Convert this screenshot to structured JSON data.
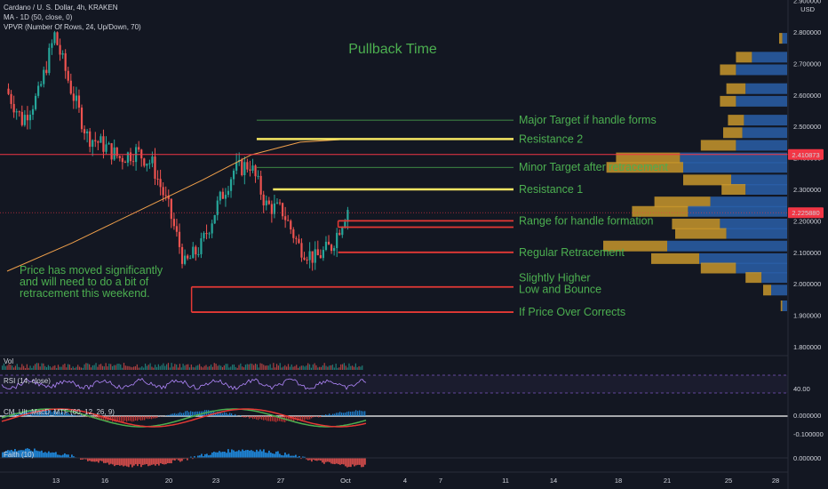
{
  "header": {
    "symbol_line": "Cardano / U. S. Dollar, 4h, KRAKEN",
    "ma_line": "MA - 1D (50, close, 0)",
    "vpvr_line": "VPVR (Number Of Rows, 24, Up/Down, 70)"
  },
  "chart_data": {
    "type": "line",
    "title": "Pullback Time",
    "price_axis": {
      "ticks": [
        "2.900000",
        "2.800000",
        "2.700000",
        "2.600000",
        "2.500000",
        "2.400000",
        "2.300000",
        "2.200000",
        "2.100000",
        "2.000000",
        "1.900000",
        "1.800000"
      ],
      "currency": "USD",
      "ylim": [
        1.8,
        2.9
      ]
    },
    "time_axis": {
      "ticks": [
        "13",
        "16",
        "20",
        "23",
        "27",
        "Oct",
        "4",
        "7",
        "11",
        "14",
        "18",
        "21",
        "25",
        "28"
      ]
    },
    "price_badges": [
      {
        "value": "2.410873",
        "color": "#f23645"
      },
      {
        "value": "2.225880",
        "color": "#f23645"
      }
    ],
    "price_series": {
      "name": "",
      "points": [
        {
          "x": "Sep 10",
          "y": 2.62
        },
        {
          "x": "Sep 11",
          "y": 2.52
        },
        {
          "x": "Sep 12",
          "y": 2.6
        },
        {
          "x": "Sep 13",
          "y": 2.79
        },
        {
          "x": "Sep 14",
          "y": 2.62
        },
        {
          "x": "Sep 15",
          "y": 2.47
        },
        {
          "x": "Sep 16",
          "y": 2.44
        },
        {
          "x": "Sep 17",
          "y": 2.4
        },
        {
          "x": "Sep 18",
          "y": 2.42
        },
        {
          "x": "Sep 19",
          "y": 2.38
        },
        {
          "x": "Sep 20",
          "y": 2.24
        },
        {
          "x": "Sep 21",
          "y": 2.06
        },
        {
          "x": "Sep 22",
          "y": 2.12
        },
        {
          "x": "Sep 23",
          "y": 2.25
        },
        {
          "x": "Sep 24",
          "y": 2.36
        },
        {
          "x": "Sep 25",
          "y": 2.38
        },
        {
          "x": "Sep 26",
          "y": 2.25
        },
        {
          "x": "Sep 27",
          "y": 2.23
        },
        {
          "x": "Sep 28",
          "y": 2.12
        },
        {
          "x": "Sep 29",
          "y": 2.08
        },
        {
          "x": "Sep 30",
          "y": 2.12
        },
        {
          "x": "Oct 1",
          "y": 2.24
        }
      ]
    },
    "ma_series": {
      "name": "",
      "points": [
        {
          "x": "Sep 10",
          "y": 2.04
        },
        {
          "x": "Sep 14",
          "y": 2.13
        },
        {
          "x": "Sep 18",
          "y": 2.23
        },
        {
          "x": "Sep 22",
          "y": 2.33
        },
        {
          "x": "Sep 25",
          "y": 2.41
        },
        {
          "x": "Sep 28",
          "y": 2.45
        },
        {
          "x": "Oct 1",
          "y": 2.46
        }
      ]
    },
    "levels": [
      {
        "label": "Major Target if handle forms",
        "price": 2.52,
        "color": "#4caf50",
        "from": "Sep 25"
      },
      {
        "label": "Resistance 2",
        "price": 2.46,
        "color": "#f5e663",
        "from": "Sep 25"
      },
      {
        "label": "Minor Target after retracement",
        "price": 2.37,
        "color": "#4caf50",
        "from": "Sep 25"
      },
      {
        "label": "Resistance 1",
        "price": 2.3,
        "color": "#f5e663",
        "from": "Sep 26"
      },
      {
        "label": "Range for handle formation",
        "price": 2.2,
        "color": "#e53935",
        "from": "Sep 30"
      },
      {
        "label": "",
        "price": 2.18,
        "color": "#e53935",
        "from": "Sep 30"
      },
      {
        "label": "Regular Retracement",
        "price": 2.1,
        "color": "#e53935",
        "from": "Sep 30"
      },
      {
        "label": "Slightly Higher|Low and Bounce",
        "price": 1.99,
        "color": "#e53935",
        "from": "Sep 21"
      },
      {
        "label": "If Price Over Corrects",
        "price": 1.91,
        "color": "#e53935",
        "from": "Sep 21"
      }
    ],
    "annotations": [
      {
        "text": "Price has moved significantly|and will need to do a bit of|retracement this weekend."
      }
    ],
    "volume_profile": [
      {
        "price": 2.78,
        "up": 0.03,
        "down": 0.02
      },
      {
        "price": 2.72,
        "up": 0.22,
        "down": 0.1
      },
      {
        "price": 2.68,
        "up": 0.32,
        "down": 0.1
      },
      {
        "price": 2.62,
        "up": 0.26,
        "down": 0.12
      },
      {
        "price": 2.58,
        "up": 0.32,
        "down": 0.1
      },
      {
        "price": 2.52,
        "up": 0.27,
        "down": 0.1
      },
      {
        "price": 2.48,
        "up": 0.28,
        "down": 0.12
      },
      {
        "price": 2.44,
        "up": 0.32,
        "down": 0.22
      },
      {
        "price": 2.4,
        "up": 0.67,
        "down": 0.4
      },
      {
        "price": 2.37,
        "up": 0.65,
        "down": 0.48
      },
      {
        "price": 2.33,
        "up": 0.35,
        "down": 0.3
      },
      {
        "price": 2.3,
        "up": 0.26,
        "down": 0.15
      },
      {
        "price": 2.26,
        "up": 0.48,
        "down": 0.35
      },
      {
        "price": 2.23,
        "up": 0.62,
        "down": 0.35
      },
      {
        "price": 2.19,
        "up": 0.42,
        "down": 0.3
      },
      {
        "price": 2.16,
        "up": 0.38,
        "down": 0.32
      },
      {
        "price": 2.12,
        "up": 0.75,
        "down": 0.4
      },
      {
        "price": 2.08,
        "up": 0.55,
        "down": 0.3
      },
      {
        "price": 2.05,
        "up": 0.32,
        "down": 0.22
      },
      {
        "price": 2.02,
        "up": 0.16,
        "down": 0.1
      },
      {
        "price": 1.98,
        "up": 0.1,
        "down": 0.05
      },
      {
        "price": 1.93,
        "up": 0.03,
        "down": 0.01
      }
    ]
  },
  "panes": {
    "volume": {
      "label": "Vol"
    },
    "rsi": {
      "label": "RSI (14, close)",
      "tick": "40.00"
    },
    "macd": {
      "label": "CM_Ult_MacD_MTF (60, 12, 26, 9)",
      "ticks": [
        "0.000000",
        "-0.100000"
      ]
    },
    "faith": {
      "label": "Faith (10)",
      "tick": "0.000000"
    }
  },
  "colors": {
    "background": "#131722",
    "up_candle": "#26a69a",
    "down_candle": "#ef5350",
    "ma": "#f0a04b",
    "annotation_green": "#4caf50",
    "resistance_yellow": "#f5e663",
    "support_red": "#e53935",
    "vp_up": "#2a5fa8",
    "vp_down": "#c8962c"
  }
}
